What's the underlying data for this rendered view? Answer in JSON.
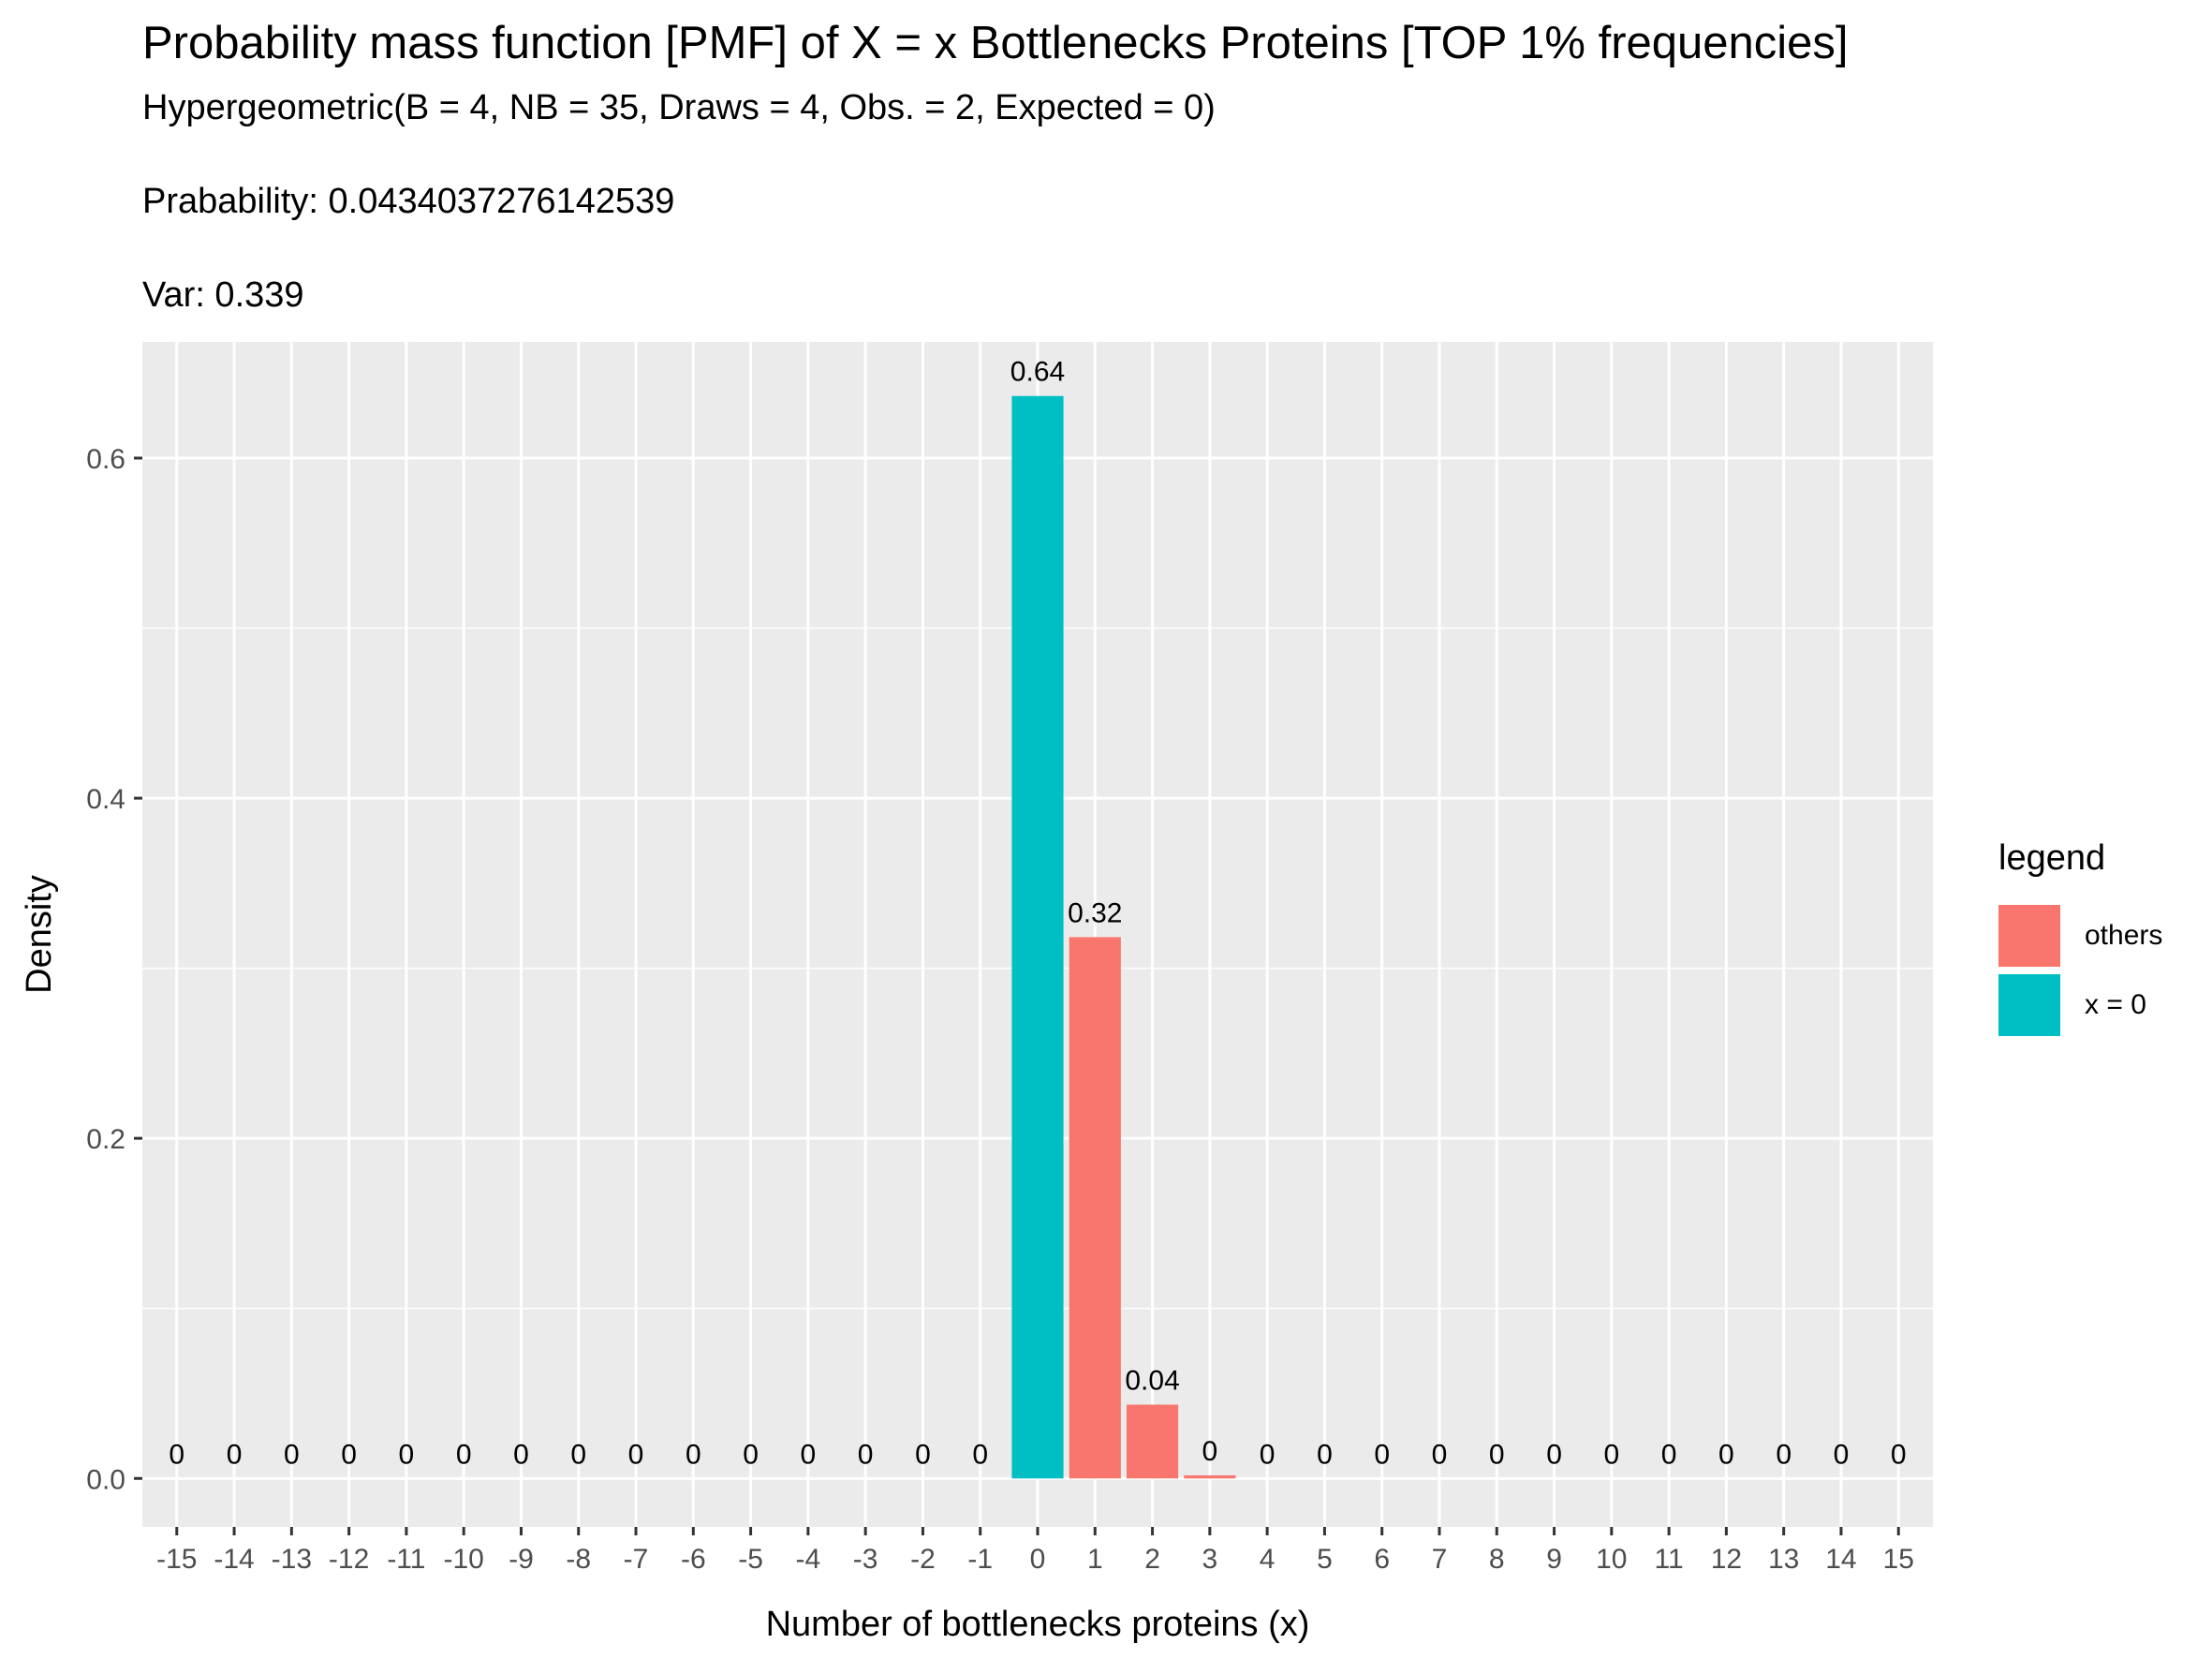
{
  "chart_data": {
    "type": "bar",
    "title": "Probability mass function [PMF] of X = x Bottlenecks Proteins [TOP 1% frequencies]",
    "subtitle_lines": [
      "Hypergeometric(B = 4, NB = 35, Draws = 4, Obs. = 2, Expected = 0)",
      "Prabability: 0.0434037276142539",
      "Var: 0.339"
    ],
    "xlabel": "Number of bottlenecks proteins (x)",
    "ylabel": "Density",
    "categories": [
      -15,
      -14,
      -13,
      -12,
      -11,
      -10,
      -9,
      -8,
      -7,
      -6,
      -5,
      -4,
      -3,
      -2,
      -1,
      0,
      1,
      2,
      3,
      4,
      5,
      6,
      7,
      8,
      9,
      10,
      11,
      12,
      13,
      14,
      15
    ],
    "values": [
      0,
      0,
      0,
      0,
      0,
      0,
      0,
      0,
      0,
      0,
      0,
      0,
      0,
      0,
      0,
      0.6365,
      0.3183,
      0.0434,
      0.0018,
      0,
      0,
      0,
      0,
      0,
      0,
      0,
      0,
      0,
      0,
      0,
      0
    ],
    "data_labels": [
      "0",
      "0",
      "0",
      "0",
      "0",
      "0",
      "0",
      "0",
      "0",
      "0",
      "0",
      "0",
      "0",
      "0",
      "0",
      "0.64",
      "0.32",
      "0.04",
      "0",
      "0",
      "0",
      "0",
      "0",
      "0",
      "0",
      "0",
      "0",
      "0",
      "0",
      "0",
      "0"
    ],
    "series_group": [
      "others",
      "others",
      "others",
      "others",
      "others",
      "others",
      "others",
      "others",
      "others",
      "others",
      "others",
      "others",
      "others",
      "others",
      "others",
      "x = 0",
      "others",
      "others",
      "others",
      "others",
      "others",
      "others",
      "others",
      "others",
      "others",
      "others",
      "others",
      "others",
      "others",
      "others",
      "others"
    ],
    "ylim": [
      -0.0285,
      0.6683
    ],
    "yticks": [
      0.0,
      0.2,
      0.4,
      0.6
    ],
    "ytick_labels": [
      "0.0",
      "0.2",
      "0.4",
      "0.6"
    ],
    "grid": true,
    "legend": {
      "title": "legend",
      "placement": "right",
      "entries": [
        {
          "label": "others",
          "color": "#F8766D"
        },
        {
          "label": "x = 0",
          "color": "#00BFC4"
        }
      ]
    },
    "colors": {
      "panel": "#EBEBEB",
      "grid": "#FFFFFF",
      "others": "#F8766D",
      "highlight": "#00BFC4"
    }
  }
}
